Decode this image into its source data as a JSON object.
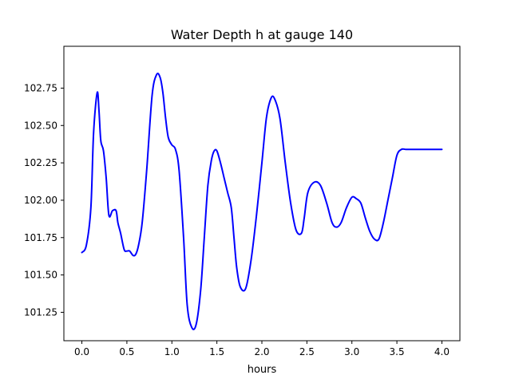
{
  "chart_data": {
    "type": "line",
    "title": "Water Depth h at gauge 140",
    "xlabel": "hours",
    "ylabel": "",
    "xlim": [
      -0.2,
      4.2
    ],
    "ylim": [
      101.06,
      103.03
    ],
    "x_ticks": [
      0.0,
      0.5,
      1.0,
      1.5,
      2.0,
      2.5,
      3.0,
      3.5,
      4.0
    ],
    "x_tick_labels": [
      "0.0",
      "0.5",
      "1.0",
      "1.5",
      "2.0",
      "2.5",
      "3.0",
      "3.5",
      "4.0"
    ],
    "y_ticks": [
      101.25,
      101.5,
      101.75,
      102.0,
      102.25,
      102.5,
      102.75
    ],
    "y_tick_labels": [
      "101.25",
      "101.50",
      "101.75",
      "102.00",
      "102.25",
      "102.50",
      "102.75"
    ],
    "grid": false,
    "legend": false,
    "series": [
      {
        "color": "#0000ff",
        "x": [
          0.0,
          0.05,
          0.1,
          0.13,
          0.17,
          0.19,
          0.21,
          0.24,
          0.27,
          0.3,
          0.34,
          0.38,
          0.4,
          0.43,
          0.47,
          0.5,
          0.53,
          0.57,
          0.6,
          0.63,
          0.67,
          0.72,
          0.78,
          0.83,
          0.87,
          0.9,
          0.93,
          0.96,
          1.0,
          1.04,
          1.08,
          1.13,
          1.17,
          1.22,
          1.27,
          1.32,
          1.36,
          1.4,
          1.44,
          1.47,
          1.5,
          1.54,
          1.58,
          1.62,
          1.66,
          1.69,
          1.72,
          1.76,
          1.82,
          1.88,
          1.94,
          2.0,
          2.05,
          2.1,
          2.14,
          2.2,
          2.26,
          2.32,
          2.38,
          2.44,
          2.47,
          2.51,
          2.58,
          2.65,
          2.72,
          2.78,
          2.83,
          2.88,
          2.94,
          3.0,
          3.05,
          3.1,
          3.15,
          3.2,
          3.25,
          3.3,
          3.35,
          3.4,
          3.45,
          3.5,
          3.55,
          3.6,
          3.66,
          3.71,
          3.76,
          3.82,
          3.88,
          3.94,
          4.0
        ],
        "values": [
          101.65,
          101.7,
          101.95,
          102.45,
          102.72,
          102.6,
          102.4,
          102.33,
          102.15,
          101.9,
          101.93,
          101.93,
          101.85,
          101.78,
          101.67,
          101.66,
          101.66,
          101.63,
          101.64,
          101.7,
          101.85,
          102.2,
          102.7,
          102.84,
          102.82,
          102.72,
          102.55,
          102.42,
          102.37,
          102.34,
          102.2,
          101.75,
          101.3,
          101.15,
          101.17,
          101.4,
          101.75,
          102.1,
          102.27,
          102.33,
          102.33,
          102.25,
          102.15,
          102.05,
          101.95,
          101.75,
          101.55,
          101.42,
          101.41,
          101.6,
          101.9,
          102.25,
          102.55,
          102.68,
          102.68,
          102.55,
          102.25,
          101.98,
          101.8,
          101.78,
          101.88,
          102.05,
          102.12,
          102.1,
          101.98,
          101.85,
          101.82,
          101.85,
          101.95,
          102.02,
          102.01,
          101.98,
          101.88,
          101.79,
          101.74,
          101.74,
          101.85,
          102.0,
          102.15,
          102.3,
          102.34,
          102.34,
          102.34,
          102.34,
          102.34,
          102.34,
          102.34,
          102.34,
          102.34
        ]
      }
    ]
  }
}
